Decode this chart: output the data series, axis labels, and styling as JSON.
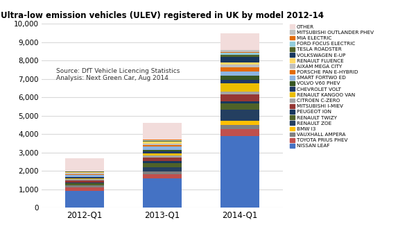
{
  "title": "Ultra-low emission vehicles (ULEV) registered in UK by model 2012-14",
  "categories": [
    "2012-Q1",
    "2013-Q1",
    "2014-Q1"
  ],
  "source_text": "Source: DfT Vehicle Licencing Statistics\nAnalysis: Next Green Car, Aug 2014",
  "ylim": [
    0,
    10000
  ],
  "yticks": [
    0,
    1000,
    2000,
    3000,
    4000,
    5000,
    6000,
    7000,
    8000,
    9000,
    10000
  ],
  "series": [
    {
      "label": "NISSAN LEAF",
      "color": "#4472C4",
      "values": [
        900,
        1600,
        3900
      ]
    },
    {
      "label": "TOYOTA PRIUS PHEV",
      "color": "#C0504D",
      "values": [
        200,
        220,
        380
      ]
    },
    {
      "label": "VAUXHALL AMPERA",
      "color": "#808080",
      "values": [
        120,
        160,
        200
      ]
    },
    {
      "label": "BMW I3",
      "color": "#FFC000",
      "values": [
        0,
        0,
        250
      ]
    },
    {
      "label": "RENAULT ZOE",
      "color": "#243F60",
      "values": [
        0,
        220,
        600
      ]
    },
    {
      "label": "RENAULT TWIZY",
      "color": "#4F6228",
      "values": [
        100,
        220,
        320
      ]
    },
    {
      "label": "PEUGEOT ION",
      "color": "#17375E",
      "values": [
        60,
        100,
        120
      ]
    },
    {
      "label": "MITSUBISHI I-MIEV",
      "color": "#953734",
      "values": [
        100,
        220,
        380
      ]
    },
    {
      "label": "CITROEN C-ZERO",
      "color": "#A5A5A5",
      "values": [
        70,
        110,
        170
      ]
    },
    {
      "label": "RENAULT KANGOO VAN",
      "color": "#EBBE00",
      "values": [
        60,
        110,
        420
      ]
    },
    {
      "label": "CHEVROLET VOLT",
      "color": "#1F3864",
      "values": [
        60,
        90,
        220
      ]
    },
    {
      "label": "VOLVO V60 PHEV",
      "color": "#375623",
      "values": [
        0,
        100,
        220
      ]
    },
    {
      "label": "SMART FORTWO ED",
      "color": "#8DB4E2",
      "values": [
        100,
        160,
        220
      ]
    },
    {
      "label": "PORSCHE PAN E-HYBRID",
      "color": "#E26B0A",
      "values": [
        60,
        90,
        220
      ]
    },
    {
      "label": "AIXAM MEGA CITY",
      "color": "#BFBFBF",
      "values": [
        60,
        90,
        160
      ]
    },
    {
      "label": "RENAULT FLUENCE",
      "color": "#FFD966",
      "values": [
        50,
        90,
        120
      ]
    },
    {
      "label": "VOLKSWAGEN E-UP",
      "color": "#17375E",
      "values": [
        0,
        0,
        300
      ]
    },
    {
      "label": "TESLA ROADSTER",
      "color": "#4F6228",
      "values": [
        40,
        60,
        100
      ]
    },
    {
      "label": "FORD FOCUS ELECTRIC",
      "color": "#92CDDC",
      "values": [
        0,
        40,
        100
      ]
    },
    {
      "label": "MIA ELECTRIC",
      "color": "#E26B0A",
      "values": [
        0,
        40,
        60
      ]
    },
    {
      "label": "MITSUBISHI OUTLANDER PHEV",
      "color": "#C0C0C0",
      "values": [
        0,
        0,
        100
      ]
    },
    {
      "label": "OTHER",
      "color": "#F2DCDB",
      "values": [
        700,
        900,
        900
      ]
    }
  ],
  "bg_color": "#FFFFFF",
  "grid_color": "#D9D9D9",
  "bar_width": 0.5
}
